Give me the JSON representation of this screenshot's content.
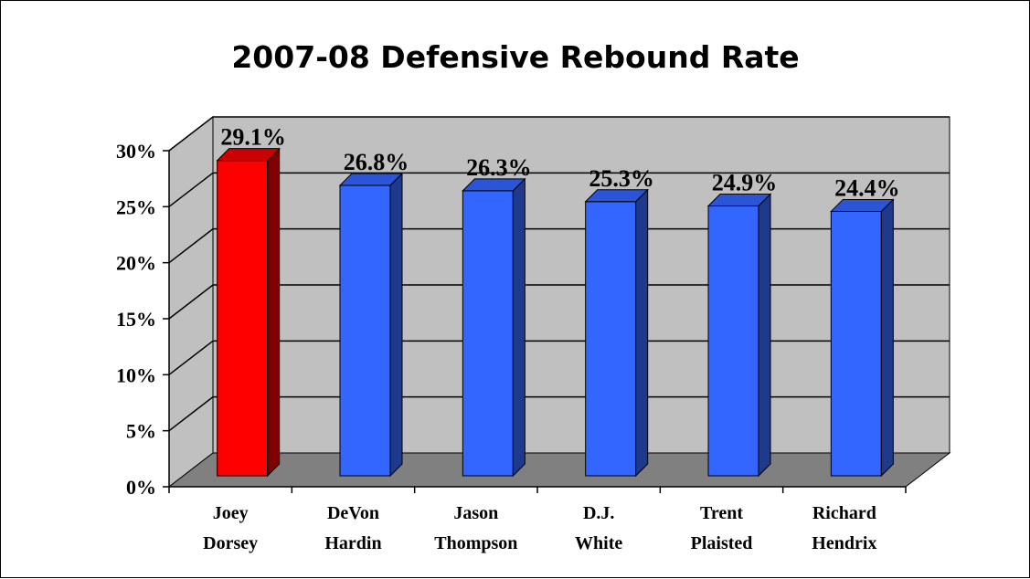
{
  "chart_data": {
    "type": "bar",
    "title": "2007-08 Defensive Rebound Rate",
    "categories": [
      [
        "Joey",
        "Dorsey"
      ],
      [
        "DeVon",
        "Hardin"
      ],
      [
        "Jason",
        "Thompson"
      ],
      [
        "D.J.",
        "White"
      ],
      [
        "Trent",
        "Plaisted"
      ],
      [
        "Richard",
        "Hendrix"
      ]
    ],
    "values": [
      29.1,
      26.8,
      26.3,
      25.3,
      24.9,
      24.4
    ],
    "value_labels": [
      "29.1%",
      "26.8%",
      "26.3%",
      "25.3%",
      "24.9%",
      "24.4%"
    ],
    "ylim": [
      0,
      30
    ],
    "y_ticks": [
      0,
      5,
      10,
      15,
      20,
      25,
      30
    ],
    "y_tick_labels": [
      "0%",
      "5%",
      "10%",
      "15%",
      "20%",
      "25%",
      "30%"
    ],
    "grid": true,
    "legend": "none",
    "highlight_index": 0,
    "colors": {
      "highlight_front": "#FF0000",
      "highlight_side": "#800000",
      "highlight_top": "#CC0000",
      "bar_front": "#3366FF",
      "bar_side": "#1F3A8C",
      "bar_top": "#2B55D6",
      "back_wall": "#C0C0C0",
      "side_wall": "#C0C0C0",
      "floor": "#808080"
    }
  }
}
